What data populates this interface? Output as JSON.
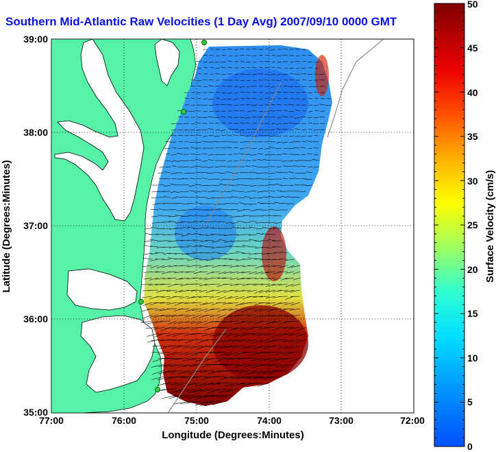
{
  "title": "Southern Mid-Atlantic Raw Velocities (1 Day Avg) 2007/09/10 0000 GMT",
  "x_axis": {
    "label": "Longitude (Degrees:Minutes)",
    "ticks": [
      "77:00",
      "76:00",
      "75:00",
      "74:00",
      "73:00",
      "72:00"
    ]
  },
  "y_axis": {
    "label": "Latitude (Degrees:Minutes)",
    "ticks": [
      "39:00",
      "38:00",
      "37:00",
      "36:00",
      "35:00"
    ]
  },
  "colorbar": {
    "label": "Surface Velocity (cm/s)",
    "ticks": [
      "50",
      "45",
      "40",
      "35",
      "30",
      "25",
      "20",
      "15",
      "10",
      "5",
      "0"
    ],
    "range": [
      0,
      50
    ],
    "colormap": "jet"
  },
  "colors": {
    "land": "#55f2a8",
    "title": "#0a10e0",
    "station": "#2ecc40"
  }
}
